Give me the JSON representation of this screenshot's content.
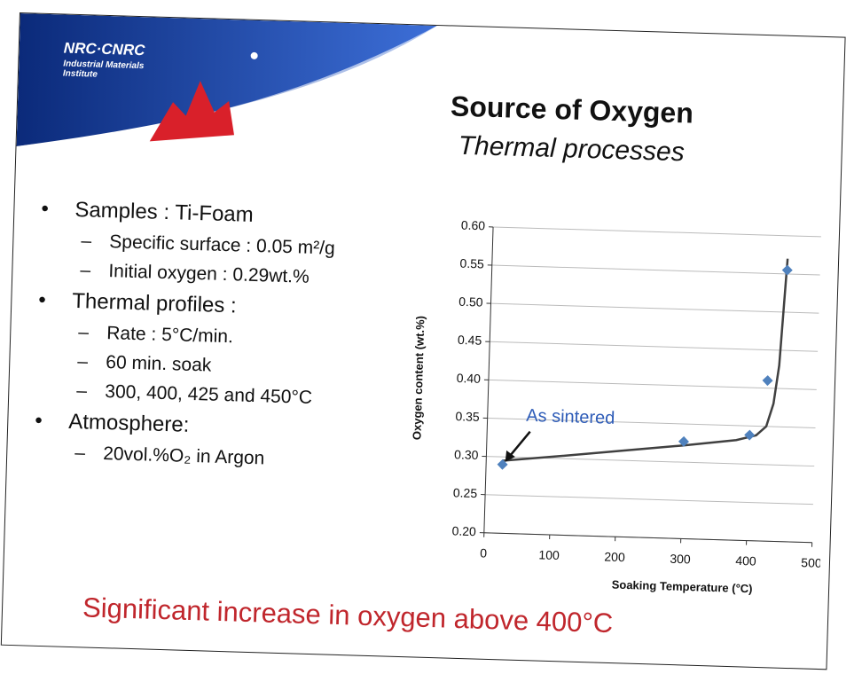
{
  "header": {
    "logo": "NRC·CNRC",
    "institute": [
      "Industrial Materials",
      "Institute"
    ],
    "title": "Source of Oxygen",
    "subtitle": "Thermal processes"
  },
  "bullets": [
    {
      "text": "Samples : Ti-Foam",
      "sub": [
        "Specific surface : 0.05 m²/g",
        "Initial oxygen : 0.29wt.%"
      ]
    },
    {
      "text": "Thermal profiles :",
      "sub": [
        "Rate : 5°C/min.",
        "60 min. soak",
        "300, 400, 425 and 450°C"
      ]
    },
    {
      "text": "Atmosphere:",
      "sub": [
        "20vol.%O₂ in Argon"
      ]
    }
  ],
  "conclusion": "Significant increase in oxygen above 400°C",
  "chart_data": {
    "type": "scatter",
    "x_label": "Soaking Temperature (°C)",
    "y_label": "Oxygen content (wt.%)",
    "x": [
      25,
      300,
      400,
      425,
      450
    ],
    "values": [
      0.29,
      0.327,
      0.338,
      0.41,
      0.555
    ],
    "color": "#4f81bd",
    "trend": {
      "x": [
        25,
        100,
        200,
        300,
        380,
        410,
        425,
        435,
        442,
        450
      ],
      "values": [
        0.295,
        0.302,
        0.312,
        0.322,
        0.331,
        0.338,
        0.35,
        0.38,
        0.43,
        0.57
      ],
      "color": "#404040"
    },
    "annotation": {
      "text": "As sintered",
      "x": 25,
      "y": 0.29
    },
    "xlim": [
      0,
      500
    ],
    "xticks": [
      0,
      100,
      200,
      300,
      400,
      500
    ],
    "ylim": [
      0.2,
      0.6
    ],
    "yticks": [
      {
        "value": 0.2,
        "label": "0.20"
      },
      {
        "value": 0.25,
        "label": "0.25"
      },
      {
        "value": 0.3,
        "label": "0.30"
      },
      {
        "value": 0.35,
        "label": "0.35"
      },
      {
        "value": 0.4,
        "label": "0.40"
      },
      {
        "value": 0.45,
        "label": "0.45"
      },
      {
        "value": 0.5,
        "label": "0.50"
      },
      {
        "value": 0.55,
        "label": "0.55"
      },
      {
        "value": 0.6,
        "label": "0.60"
      }
    ],
    "grid": true
  }
}
